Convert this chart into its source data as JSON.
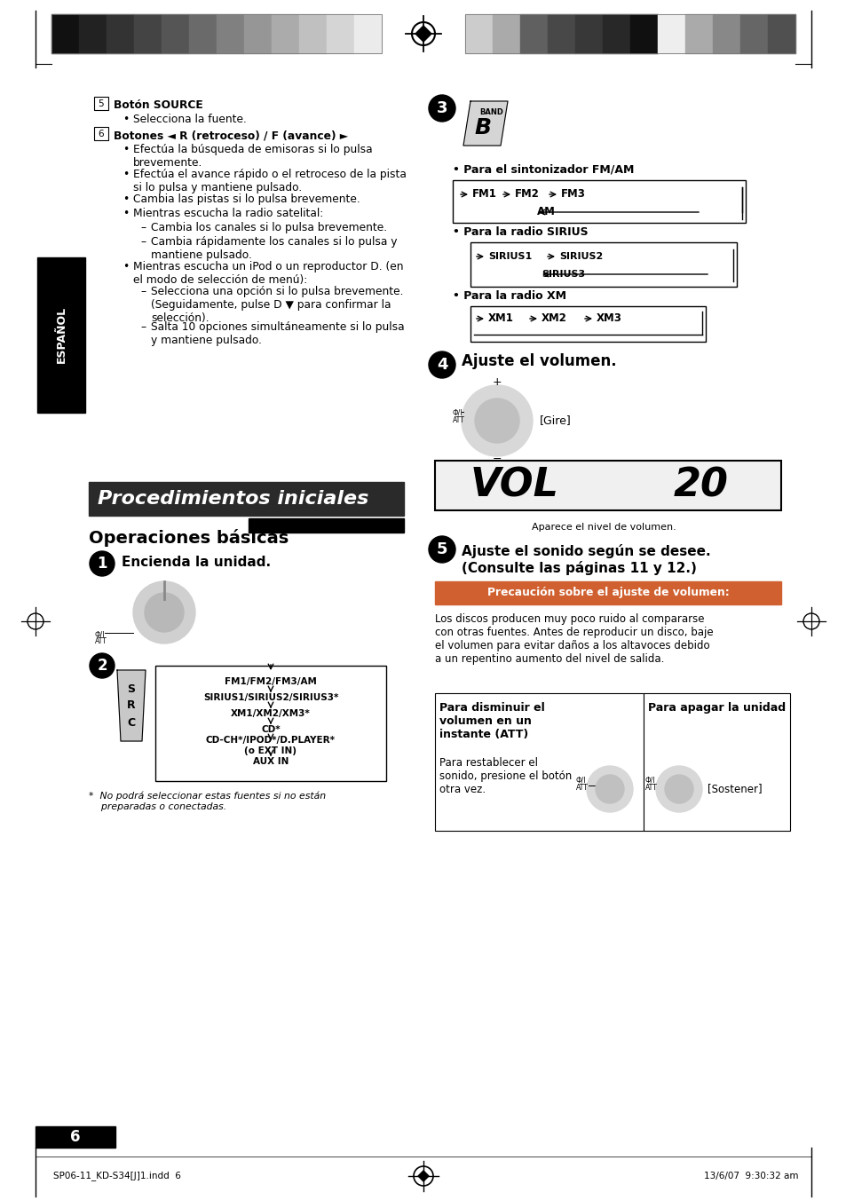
{
  "page_bg": "#ffffff",
  "header_bar_colors_left": [
    "#111111",
    "#222222",
    "#333333",
    "#444444",
    "#555555",
    "#6a6a6a",
    "#808080",
    "#969696",
    "#ababab",
    "#c0c0c0",
    "#d5d5d5",
    "#ebebeb"
  ],
  "header_bar_colors_right": [
    "#cccccc",
    "#aaaaaa",
    "#606060",
    "#484848",
    "#383838",
    "#282828",
    "#101010",
    "#eeeeee",
    "#aaaaaa",
    "#888888",
    "#666666",
    "#505050"
  ],
  "footer_text_left": "SP06-11_KD-S34[J]1.indd  6",
  "footer_text_right": "13/6/07  9:30:32 am",
  "page_number": "6",
  "espanol_label": "ESPAÑOL",
  "section_title": "Procedimientos iniciales",
  "subsection_title": "Operaciones básicas",
  "step1_label": "Encienda la unidad.",
  "step2_sources": [
    "FM1/FM2/FM3/AM",
    "SIRIUS1/SIRIUS2/SIRIUS3*",
    "XM1/XM2/XM3*",
    "CD*",
    "CD-CH*/IPOD*/D.PLAYER*\n(o EXT IN)",
    "AUX IN"
  ],
  "step2_footnote": "*  No podrá seleccionar estas fuentes si no están\n    preparadas o conectadas.",
  "step4_label": "Ajuste el volumen.",
  "step4_dial_note": "[Gire]",
  "step4_vol_note": "Aparece el nivel de volumen.",
  "step5_label": "Ajuste el sonido según se desee.\n(Consulte las páginas 11 y 12.)",
  "caution_title": "Precaución sobre el ajuste de volumen:",
  "caution_text": "Los discos producen muy poco ruido al compararse\ncon otras fuentes. Antes de reproducir un disco, baje\nel volumen para evitar daños a los altavoces debido\na un repentino aumento del nivel de salida.",
  "att_title": "Para disminuir el\nvolumen en un\ninstante (ATT)",
  "att_text": "Para restablecer el\nsonido, presione el botón\notra vez.",
  "off_title": "Para apagar la unidad",
  "off_note": "[Sostener]"
}
